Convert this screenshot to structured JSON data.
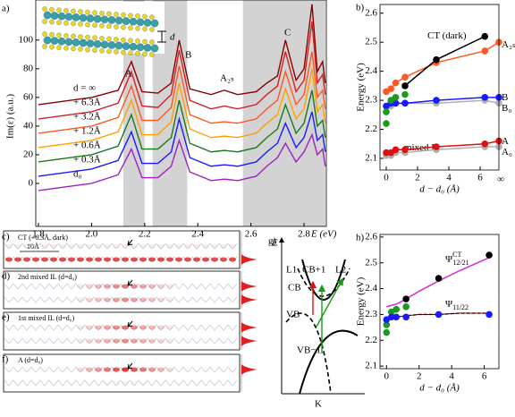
{
  "chart_data": [
    {
      "type": "line",
      "panel_label": "a)",
      "ylabel": "Im(ε) (a.u.)",
      "xlabel": "E (eV)",
      "xlim": [
        1.79,
        2.884
      ],
      "ylim": [
        -30,
        128
      ],
      "xticks": [
        1.8,
        {
          "value": 2,
          "label": "2.0"
        },
        2.2,
        2.4,
        2.6,
        2.8
      ],
      "yticks": [
        0,
        20,
        40,
        60,
        80,
        100
      ],
      "shaded": [
        [
          2.12,
          2.2
        ],
        [
          2.23,
          2.36
        ],
        [
          2.57,
          2.88
        ]
      ],
      "shade_color": "#d3d3d3",
      "annotations": [
        "A",
        "B",
        "A₂ₛ",
        "C"
      ],
      "inset_label": "d",
      "x": [
        1.8,
        2.0,
        2.1,
        2.15,
        2.19,
        2.25,
        2.3,
        2.33,
        2.37,
        2.45,
        2.5,
        2.55,
        2.62,
        2.66,
        2.7,
        2.73,
        2.77,
        2.8,
        2.83,
        2.85,
        2.87,
        2.88
      ],
      "series": [
        {
          "name": "d = ∞",
          "color": "#8b0000",
          "values": [
            55,
            60,
            65,
            85,
            64,
            63,
            70,
            100,
            66,
            62,
            65,
            62,
            64,
            70,
            75,
            100,
            72,
            80,
            125,
            78,
            85,
            70
          ]
        },
        {
          "name": "+ 6.3Å",
          "color": "#d62020",
          "values": [
            45,
            50,
            56,
            78,
            54,
            53,
            62,
            93,
            58,
            52,
            54,
            52,
            55,
            62,
            68,
            92,
            64,
            72,
            113,
            70,
            76,
            62
          ]
        },
        {
          "name": "+ 3.2Å",
          "color": "#ff5722",
          "values": [
            35,
            40,
            46,
            68,
            44,
            44,
            53,
            82,
            48,
            42,
            43,
            42,
            45,
            52,
            58,
            78,
            55,
            62,
            92,
            60,
            65,
            52
          ]
        },
        {
          "name": "+ 1.2Å",
          "color": "#ffa000",
          "values": [
            25,
            30,
            36,
            58,
            34,
            34,
            43,
            70,
            38,
            32,
            33,
            32,
            35,
            42,
            48,
            66,
            45,
            52,
            80,
            50,
            55,
            42
          ]
        },
        {
          "name": "+ 0.6Å",
          "color": "#1a7a1a",
          "values": [
            15,
            20,
            26,
            48,
            24,
            24,
            32,
            58,
            28,
            22,
            23,
            22,
            25,
            32,
            38,
            55,
            35,
            42,
            65,
            40,
            44,
            32
          ]
        },
        {
          "name": "+ 0.3Å",
          "color": "#1a1aff",
          "values": [
            5,
            10,
            16,
            36,
            14,
            14,
            22,
            45,
            18,
            12,
            13,
            12,
            15,
            22,
            28,
            42,
            25,
            32,
            50,
            30,
            34,
            22
          ]
        },
        {
          "name": "d₀",
          "color": "#a020c0",
          "values": [
            -5,
            0,
            6,
            24,
            4,
            4,
            12,
            30,
            8,
            2,
            3,
            2,
            5,
            12,
            18,
            28,
            15,
            22,
            34,
            20,
            24,
            12
          ]
        }
      ]
    },
    {
      "type": "scatter",
      "panel_label": "b)",
      "ylabel": "Energy (eV)",
      "xlabel": "d − d₀ (Å)",
      "infinity_label": "∞",
      "xlim": [
        -0.4,
        7.2
      ],
      "ylim": [
        2.06,
        2.63
      ],
      "xticks": [
        0,
        2,
        4,
        6
      ],
      "yticks": [
        2.1,
        2.2,
        2.3,
        2.4,
        2.5,
        2.6
      ],
      "series": [
        {
          "name": "A₂ₛ",
          "color": "#ff5722",
          "mode": "lines+markers",
          "x": [
            0,
            0.3,
            0.6,
            1.2,
            3.2,
            6.3
          ],
          "values": [
            2.33,
            2.34,
            2.36,
            2.38,
            2.43,
            2.47
          ],
          "inf_value": 2.5
        },
        {
          "name": "CT (dark)",
          "color": "#000000",
          "mode": "lines+markers",
          "x": [
            1.2,
            3.2,
            6.3
          ],
          "values": [
            2.35,
            2.44,
            2.52
          ]
        },
        {
          "name": "B₀",
          "color": "#b0b0b0",
          "mode": "lines+markers",
          "x": [
            0,
            0.3,
            0.6,
            1.2,
            3.2,
            6.3
          ],
          "values": [
            2.28,
            2.28,
            2.29,
            2.29,
            2.29,
            2.3
          ],
          "inf_value": 2.29
        },
        {
          "name": "B",
          "color": "#1a1aff",
          "mode": "lines+markers",
          "x": [
            0,
            0.3,
            0.6,
            1.2,
            3.2,
            6.3
          ],
          "values": [
            2.28,
            2.29,
            2.29,
            2.29,
            2.3,
            2.31
          ],
          "inf_value": 2.31
        },
        {
          "name": "mixed IL",
          "color": "#1a9a1a",
          "mode": "markers",
          "x": [
            0,
            0,
            0.3,
            0.6,
            1.2
          ],
          "values": [
            2.22,
            2.26,
            2.3,
            2.31,
            2.32
          ]
        },
        {
          "name": "A₀",
          "color": "#b0b0b0",
          "mode": "lines+markers",
          "x": [
            0,
            0.3,
            0.6,
            1.2,
            3.2,
            6.3
          ],
          "values": [
            2.11,
            2.11,
            2.12,
            2.12,
            2.13,
            2.14
          ],
          "inf_value": 2.14
        },
        {
          "name": "A",
          "color": "#e01010",
          "mode": "lines+markers",
          "x": [
            0,
            0.3,
            0.6,
            1.2,
            3.2,
            6.3
          ],
          "values": [
            2.12,
            2.12,
            2.13,
            2.13,
            2.14,
            2.15
          ],
          "inf_value": 2.16
        }
      ]
    },
    {
      "type": "scatter",
      "panel_label": "h)",
      "ylabel": "Energy (eV)",
      "xlabel": "d − d₀ (Å)",
      "xlim": [
        -0.4,
        6.9
      ],
      "ylim": [
        2.09,
        2.61
      ],
      "xticks": [
        0,
        2,
        4,
        6
      ],
      "yticks": [
        2.1,
        2.2,
        2.3,
        2.4,
        2.5,
        2.6
      ],
      "series": [
        {
          "name": "Ψ",
          "sup": "CT",
          "sub": "12/21",
          "color": "#d030d0",
          "mode": "lines",
          "x": [
            0,
            0.6,
            1.2,
            2,
            3.2,
            4.5,
            6.3
          ],
          "values": [
            2.33,
            2.34,
            2.36,
            2.39,
            2.43,
            2.47,
            2.52
          ]
        },
        {
          "name": "Ψ",
          "sub": "11/22",
          "color": "#e01010",
          "mode": "lines dashed",
          "x": [
            0,
            0.6,
            1.2,
            2,
            3.2,
            4.5,
            6.3
          ],
          "values": [
            2.28,
            2.29,
            2.295,
            2.3,
            2.3,
            2.305,
            2.305
          ]
        },
        {
          "color": "#000000",
          "mode": "markers",
          "x": [
            1.2,
            3.2,
            6.3
          ],
          "values": [
            2.36,
            2.44,
            2.53
          ]
        },
        {
          "color": "#1a9a1a",
          "mode": "markers",
          "x": [
            0,
            0,
            0.3,
            0.6,
            1.2
          ],
          "values": [
            2.23,
            2.26,
            2.31,
            2.32,
            2.33
          ]
        },
        {
          "color": "#1a1aff",
          "mode": "markers",
          "x": [
            0,
            0.3,
            0.6,
            1.2,
            3.2,
            6.3
          ],
          "values": [
            2.28,
            2.29,
            2.29,
            2.29,
            2.3,
            2.3
          ]
        }
      ]
    }
  ],
  "panels_cf": [
    {
      "panel_label": "c)",
      "title": "CT (+6.3Å, dark)",
      "scale": "10Å"
    },
    {
      "panel_label": "d)",
      "title": "2nd mixed IL (d=d₀)"
    },
    {
      "panel_label": "e)",
      "title": "1st mixed IL (d=d₀)"
    },
    {
      "panel_label": "f)",
      "title": "A (d=d₀)"
    }
  ],
  "diagram_g": {
    "panel_label": "g)",
    "axis": "E",
    "left": "L1",
    "right": "L2",
    "cb1": "CB+1",
    "cb": "CB",
    "vb": "VB",
    "vb1": "VB−1",
    "k": "K"
  }
}
